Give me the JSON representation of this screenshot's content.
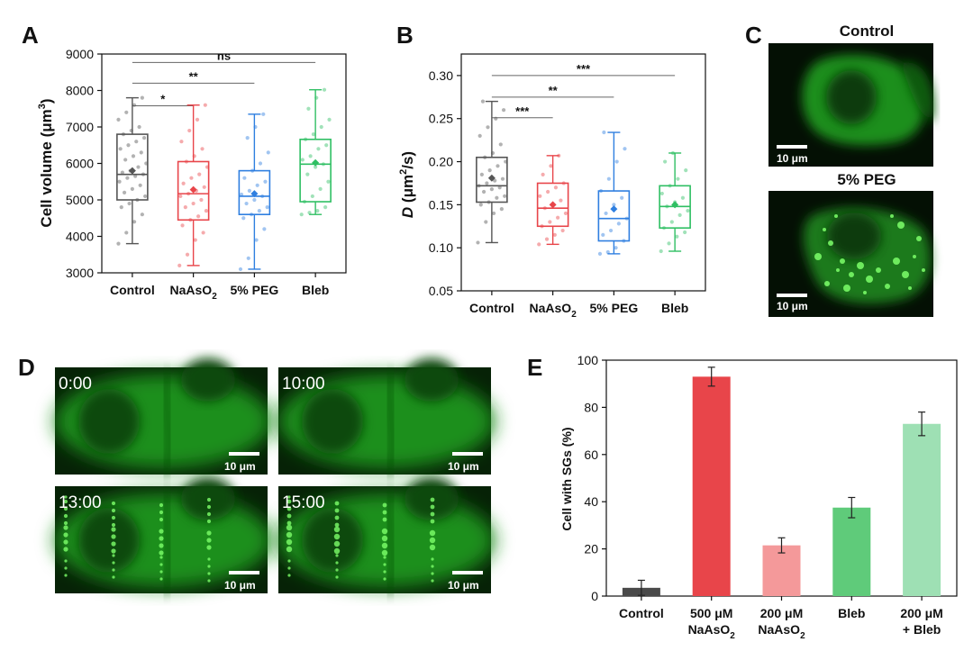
{
  "panel_labels": [
    "A",
    "B",
    "C",
    "D",
    "E"
  ],
  "chart_data": [
    {
      "panel": "A",
      "type": "box",
      "ylabel": "Cell volume (μm³)",
      "ylabel_main": "Cell volume (μm",
      "ylabel_sup": "3",
      "ylabel_tail": ")",
      "ylim": [
        3000,
        9000
      ],
      "yticks": [
        "3000",
        "4000",
        "5000",
        "6000",
        "7000",
        "8000",
        "9000"
      ],
      "categories": [
        "Control",
        "NaAsO2",
        "5% PEG",
        "Bleb"
      ],
      "category_labels": [
        {
          "main": "Control",
          "sub": ""
        },
        {
          "main": "NaAsO",
          "sub": "2"
        },
        {
          "main": "5% PEG",
          "sub": ""
        },
        {
          "main": "Bleb",
          "sub": ""
        }
      ],
      "colors": [
        "#555555",
        "#e8454a",
        "#2f7fe0",
        "#2fbf63"
      ],
      "boxes": [
        {
          "min": 3800,
          "q1": 5000,
          "median": 5700,
          "q3": 6800,
          "max": 7800,
          "mean": 5800,
          "points": [
            3800,
            4100,
            4400,
            4600,
            4800,
            4900,
            5000,
            5100,
            5200,
            5300,
            5400,
            5500,
            5600,
            5650,
            5700,
            5750,
            5800,
            5900,
            6000,
            6100,
            6200,
            6300,
            6400,
            6500,
            6600,
            6700,
            6800,
            6900,
            7000,
            7200,
            7400,
            7600,
            7800
          ]
        },
        {
          "min": 3200,
          "q1": 4450,
          "median": 5170,
          "q3": 6050,
          "max": 7600,
          "mean": 5280,
          "points": [
            3200,
            3500,
            3900,
            4100,
            4300,
            4450,
            4550,
            4700,
            4800,
            4900,
            5000,
            5100,
            5170,
            5250,
            5350,
            5450,
            5600,
            5700,
            5900,
            6050,
            6200,
            6400,
            6600,
            6900,
            7200,
            7600
          ]
        },
        {
          "min": 3100,
          "q1": 4600,
          "median": 5100,
          "q3": 5800,
          "max": 7350,
          "mean": 5170,
          "points": [
            3100,
            3400,
            3900,
            4200,
            4500,
            4600,
            4700,
            4800,
            4900,
            5000,
            5100,
            5150,
            5250,
            5400,
            5500,
            5600,
            5800,
            6000,
            6300,
            6700,
            7000,
            7350
          ]
        },
        {
          "min": 4600,
          "q1": 4950,
          "median": 5980,
          "q3": 6660,
          "max": 8020,
          "mean": 6020,
          "points": [
            4600,
            4650,
            4700,
            4800,
            4950,
            5100,
            5300,
            5500,
            5700,
            5900,
            5980,
            6100,
            6200,
            6400,
            6500,
            6660,
            6800,
            7000,
            7200,
            7500,
            7800,
            8020
          ]
        }
      ],
      "significance": [
        {
          "from": 0,
          "to": 1,
          "label": "*",
          "y": 7580
        },
        {
          "from": 0,
          "to": 2,
          "label": "**",
          "y": 8200
        },
        {
          "from": 0,
          "to": 3,
          "label": "ns",
          "y": 8770
        }
      ]
    },
    {
      "panel": "B",
      "type": "box",
      "ylabel": "D (μm²/s)",
      "ylabel_italic": "D",
      "ylabel_main": " (μm",
      "ylabel_sup": "2",
      "ylabel_tail": "/s)",
      "ylim": [
        0.05,
        0.325
      ],
      "yticks": [
        "0.05",
        "0.10",
        "0.15",
        "0.20",
        "0.25",
        "0.30"
      ],
      "categories": [
        "Control",
        "NaAsO2",
        "5% PEG",
        "Bleb"
      ],
      "category_labels": [
        {
          "main": "Control",
          "sub": ""
        },
        {
          "main": "NaAsO",
          "sub": "2"
        },
        {
          "main": "5% PEG",
          "sub": ""
        },
        {
          "main": "Bleb",
          "sub": ""
        }
      ],
      "colors": [
        "#555555",
        "#e8454a",
        "#2f7fe0",
        "#2fbf63"
      ],
      "boxes": [
        {
          "min": 0.106,
          "q1": 0.153,
          "median": 0.172,
          "q3": 0.205,
          "max": 0.27,
          "mean": 0.181,
          "points": [
            0.106,
            0.13,
            0.14,
            0.145,
            0.15,
            0.153,
            0.158,
            0.16,
            0.165,
            0.168,
            0.17,
            0.172,
            0.175,
            0.178,
            0.18,
            0.185,
            0.19,
            0.195,
            0.2,
            0.205,
            0.21,
            0.22,
            0.23,
            0.24,
            0.25,
            0.26,
            0.27
          ]
        },
        {
          "min": 0.104,
          "q1": 0.125,
          "median": 0.146,
          "q3": 0.175,
          "max": 0.207,
          "mean": 0.15,
          "points": [
            0.104,
            0.11,
            0.115,
            0.12,
            0.125,
            0.13,
            0.135,
            0.14,
            0.146,
            0.15,
            0.155,
            0.16,
            0.165,
            0.17,
            0.175,
            0.185,
            0.195,
            0.207
          ]
        },
        {
          "min": 0.093,
          "q1": 0.108,
          "median": 0.134,
          "q3": 0.166,
          "max": 0.234,
          "mean": 0.145,
          "points": [
            0.093,
            0.095,
            0.1,
            0.108,
            0.115,
            0.12,
            0.128,
            0.134,
            0.14,
            0.15,
            0.158,
            0.166,
            0.18,
            0.2,
            0.215,
            0.234
          ]
        },
        {
          "min": 0.096,
          "q1": 0.123,
          "median": 0.148,
          "q3": 0.172,
          "max": 0.21,
          "mean": 0.15,
          "points": [
            0.096,
            0.105,
            0.113,
            0.118,
            0.123,
            0.13,
            0.138,
            0.143,
            0.148,
            0.153,
            0.158,
            0.163,
            0.172,
            0.18,
            0.19,
            0.2,
            0.21
          ]
        }
      ],
      "significance": [
        {
          "from": 0,
          "to": 1,
          "label": "***",
          "y": 0.251
        },
        {
          "from": 0,
          "to": 2,
          "label": "**",
          "y": 0.275
        },
        {
          "from": 0,
          "to": 3,
          "label": "***",
          "y": 0.3
        }
      ]
    },
    {
      "panel": "E",
      "type": "bar",
      "ylabel": "Cell with SGs (%)",
      "ylim": [
        0,
        100
      ],
      "yticks": [
        "0",
        "20",
        "40",
        "60",
        "80",
        "100"
      ],
      "categories": [
        "Control",
        "500 μM NaAsO2",
        "200 μM NaAsO2",
        "Bleb",
        "200 μM + Bleb"
      ],
      "category_labels": [
        {
          "line1": "Control",
          "line2_main": "",
          "line2_sub": ""
        },
        {
          "line1": "500 μM",
          "line2_main": "NaAsO",
          "line2_sub": "2"
        },
        {
          "line1": "200 μM",
          "line2_main": "NaAsO",
          "line2_sub": "2"
        },
        {
          "line1": "Bleb",
          "line2_main": "",
          "line2_sub": ""
        },
        {
          "line1": "200 μM",
          "line2_main": "+ Bleb",
          "line2_sub": ""
        }
      ],
      "values": [
        3.5,
        93,
        21.5,
        37.5,
        73
      ],
      "errors": [
        3.2,
        4,
        3.2,
        4.3,
        5
      ],
      "colors": [
        "#4a4a4a",
        "#e8454a",
        "#f4999a",
        "#5fcb7a",
        "#9ee0b4"
      ]
    }
  ],
  "panel_C": {
    "titles": [
      "Control",
      "5% PEG"
    ],
    "scale_label": "10 μm"
  },
  "panel_D": {
    "times": [
      "0:00",
      "10:00",
      "13:00",
      "15:00"
    ],
    "scale_label": "10 μm"
  }
}
